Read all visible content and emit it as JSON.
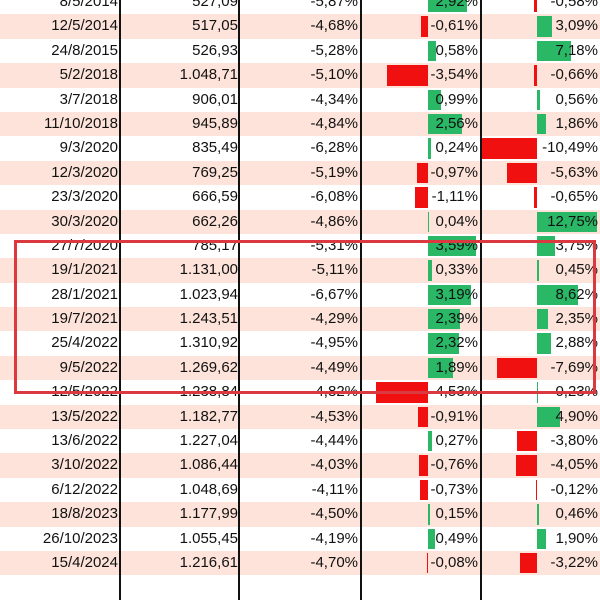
{
  "colors": {
    "positive": "#2ab866",
    "negative": "#f01010",
    "stripe": "#fde3d9",
    "highlight": "#d9393f"
  },
  "rows": [
    {
      "date": "8/5/2014",
      "close": "527,09",
      "drop": "-5,87%",
      "next": "2,92%",
      "after": "-0,58%"
    },
    {
      "date": "12/5/2014",
      "close": "517,05",
      "drop": "-4,68%",
      "next": "-0,61%",
      "after": "3,09%"
    },
    {
      "date": "24/8/2015",
      "close": "526,93",
      "drop": "-5,28%",
      "next": "0,58%",
      "after": "7,18%"
    },
    {
      "date": "5/2/2018",
      "close": "1.048,71",
      "drop": "-5,10%",
      "next": "-3,54%",
      "after": "-0,66%"
    },
    {
      "date": "3/7/2018",
      "close": "906,01",
      "drop": "-4,34%",
      "next": "0,99%",
      "after": "0,56%"
    },
    {
      "date": "11/10/2018",
      "close": "945,89",
      "drop": "-4,84%",
      "next": "2,56%",
      "after": "1,86%"
    },
    {
      "date": "9/3/2020",
      "close": "835,49",
      "drop": "-6,28%",
      "next": "0,24%",
      "after": "-10,49%"
    },
    {
      "date": "12/3/2020",
      "close": "769,25",
      "drop": "-5,19%",
      "next": "-0,97%",
      "after": "-5,63%"
    },
    {
      "date": "23/3/2020",
      "close": "666,59",
      "drop": "-6,08%",
      "next": "-1,11%",
      "after": "-0,65%"
    },
    {
      "date": "30/3/2020",
      "close": "662,26",
      "drop": "-4,86%",
      "next": "0,04%",
      "after": "12,75%"
    },
    {
      "date": "27/7/2020",
      "close": "785,17",
      "drop": "-5,31%",
      "next": "3,59%",
      "after": "3,75%"
    },
    {
      "date": "19/1/2021",
      "close": "1.131,00",
      "drop": "-5,11%",
      "next": "0,33%",
      "after": "0,45%"
    },
    {
      "date": "28/1/2021",
      "close": "1.023,94",
      "drop": "-6,67%",
      "next": "3,19%",
      "after": "8,62%"
    },
    {
      "date": "19/7/2021",
      "close": "1.243,51",
      "drop": "-4,29%",
      "next": "2,39%",
      "after": "2,35%"
    },
    {
      "date": "25/4/2022",
      "close": "1.310,92",
      "drop": "-4,95%",
      "next": "2,32%",
      "after": "2,88%"
    },
    {
      "date": "9/5/2022",
      "close": "1.269,62",
      "drop": "-4,49%",
      "next": "1,89%",
      "after": "-7,69%"
    },
    {
      "date": "12/5/2022",
      "close": "1.238,84",
      "drop": "-4,82%",
      "next": "-4,53%",
      "after": "0,23%"
    },
    {
      "date": "13/5/2022",
      "close": "1.182,77",
      "drop": "-4,53%",
      "next": "-0,91%",
      "after": "4,90%"
    },
    {
      "date": "13/6/2022",
      "close": "1.227,04",
      "drop": "-4,44%",
      "next": "0,27%",
      "after": "-3,80%"
    },
    {
      "date": "3/10/2022",
      "close": "1.086,44",
      "drop": "-4,03%",
      "next": "-0,76%",
      "after": "-4,05%"
    },
    {
      "date": "6/12/2022",
      "close": "1.048,69",
      "drop": "-4,11%",
      "next": "-0,73%",
      "after": "-0,12%"
    },
    {
      "date": "18/8/2023",
      "close": "1.177,99",
      "drop": "-4,50%",
      "next": "0,15%",
      "after": "0,46%"
    },
    {
      "date": "26/10/2023",
      "close": "1.055,45",
      "drop": "-4,19%",
      "next": "0,49%",
      "after": "1,90%"
    },
    {
      "date": "15/4/2024",
      "close": "1.216,61",
      "drop": "-4,70%",
      "next": "-0,08%",
      "after": "-3,22%"
    }
  ],
  "highlighted_rows": [
    "27/7/2020",
    "19/1/2021",
    "28/1/2021",
    "19/7/2021",
    "25/4/2022",
    "9/5/2022"
  ]
}
